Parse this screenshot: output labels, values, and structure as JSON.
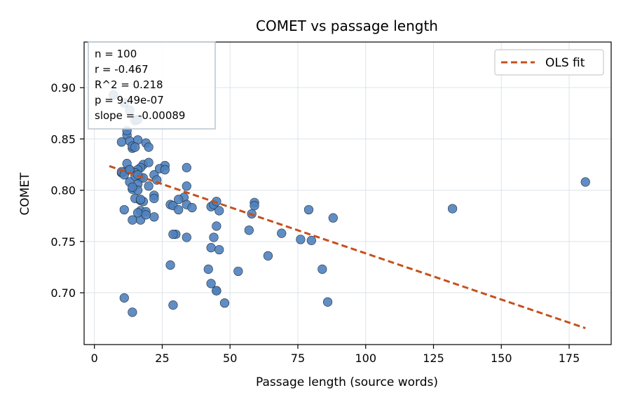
{
  "chart_data": {
    "type": "scatter",
    "title": "COMET vs passage length",
    "xlabel": "Passage length (source words)",
    "ylabel": "COMET",
    "xlim": [
      -3.8,
      190.5
    ],
    "ylim": [
      0.6495,
      0.9445
    ],
    "xticks": [
      0,
      25,
      50,
      75,
      100,
      125,
      150,
      175
    ],
    "yticks": [
      0.7,
      0.75,
      0.8,
      0.85,
      0.9
    ],
    "xtick_labels": [
      "0",
      "25",
      "50",
      "75",
      "100",
      "125",
      "150",
      "175"
    ],
    "ytick_labels": [
      "0.70",
      "0.75",
      "0.80",
      "0.85",
      "0.90"
    ],
    "grid": true,
    "legend_position": "top-right",
    "stats_box_position": "top-left",
    "stats_lines": [
      "n = 100",
      "r = -0.467",
      "R^2 = 0.218",
      "p = 9.49e-07",
      "slope = -0.00089"
    ],
    "series": [
      {
        "kind": "points",
        "color": "#4f81bd",
        "x": [
          7,
          11,
          13,
          15,
          16,
          19,
          12,
          12,
          13,
          10,
          14,
          16,
          20,
          18,
          20,
          14,
          15,
          10,
          17,
          22,
          26,
          12,
          16,
          24,
          11,
          13,
          15,
          17,
          10,
          11,
          18,
          14,
          20,
          22,
          23,
          16,
          16,
          13,
          15,
          17,
          18,
          17,
          14,
          11,
          15,
          22,
          34,
          34,
          33,
          28,
          29,
          31,
          34,
          31,
          36,
          30,
          22,
          29,
          28,
          34,
          43,
          44,
          45,
          46,
          45,
          44,
          43,
          46,
          45,
          42,
          43,
          45,
          48,
          53,
          57,
          58,
          59,
          59,
          64,
          69,
          76,
          79,
          80,
          84,
          86,
          88,
          132,
          181,
          11,
          14,
          29,
          26,
          14,
          17,
          17,
          13,
          19,
          16,
          16,
          19
        ],
        "y": [
          0.893,
          0.885,
          0.878,
          0.868,
          0.869,
          0.846,
          0.854,
          0.858,
          0.848,
          0.847,
          0.841,
          0.849,
          0.842,
          0.825,
          0.827,
          0.843,
          0.842,
          0.817,
          0.822,
          0.815,
          0.824,
          0.826,
          0.82,
          0.821,
          0.818,
          0.82,
          0.817,
          0.812,
          0.818,
          0.815,
          0.812,
          0.801,
          0.804,
          0.795,
          0.81,
          0.806,
          0.8,
          0.808,
          0.792,
          0.79,
          0.789,
          0.78,
          0.771,
          0.781,
          0.814,
          0.774,
          0.822,
          0.804,
          0.793,
          0.786,
          0.785,
          0.791,
          0.786,
          0.781,
          0.783,
          0.757,
          0.792,
          0.757,
          0.727,
          0.754,
          0.784,
          0.786,
          0.789,
          0.78,
          0.765,
          0.754,
          0.744,
          0.742,
          0.702,
          0.723,
          0.709,
          0.702,
          0.69,
          0.721,
          0.761,
          0.777,
          0.788,
          0.785,
          0.736,
          0.758,
          0.752,
          0.781,
          0.751,
          0.723,
          0.691,
          0.773,
          0.782,
          0.808,
          0.695,
          0.681,
          0.688,
          0.82,
          0.803,
          0.771,
          0.791,
          0.82,
          0.779,
          0.815,
          0.778,
          0.776
        ]
      },
      {
        "kind": "line",
        "name": "OLS fit",
        "color": "#c5501d",
        "style": "dashed",
        "x": [
          5.5,
          181
        ],
        "y": [
          0.8235,
          0.6655
        ]
      }
    ]
  }
}
